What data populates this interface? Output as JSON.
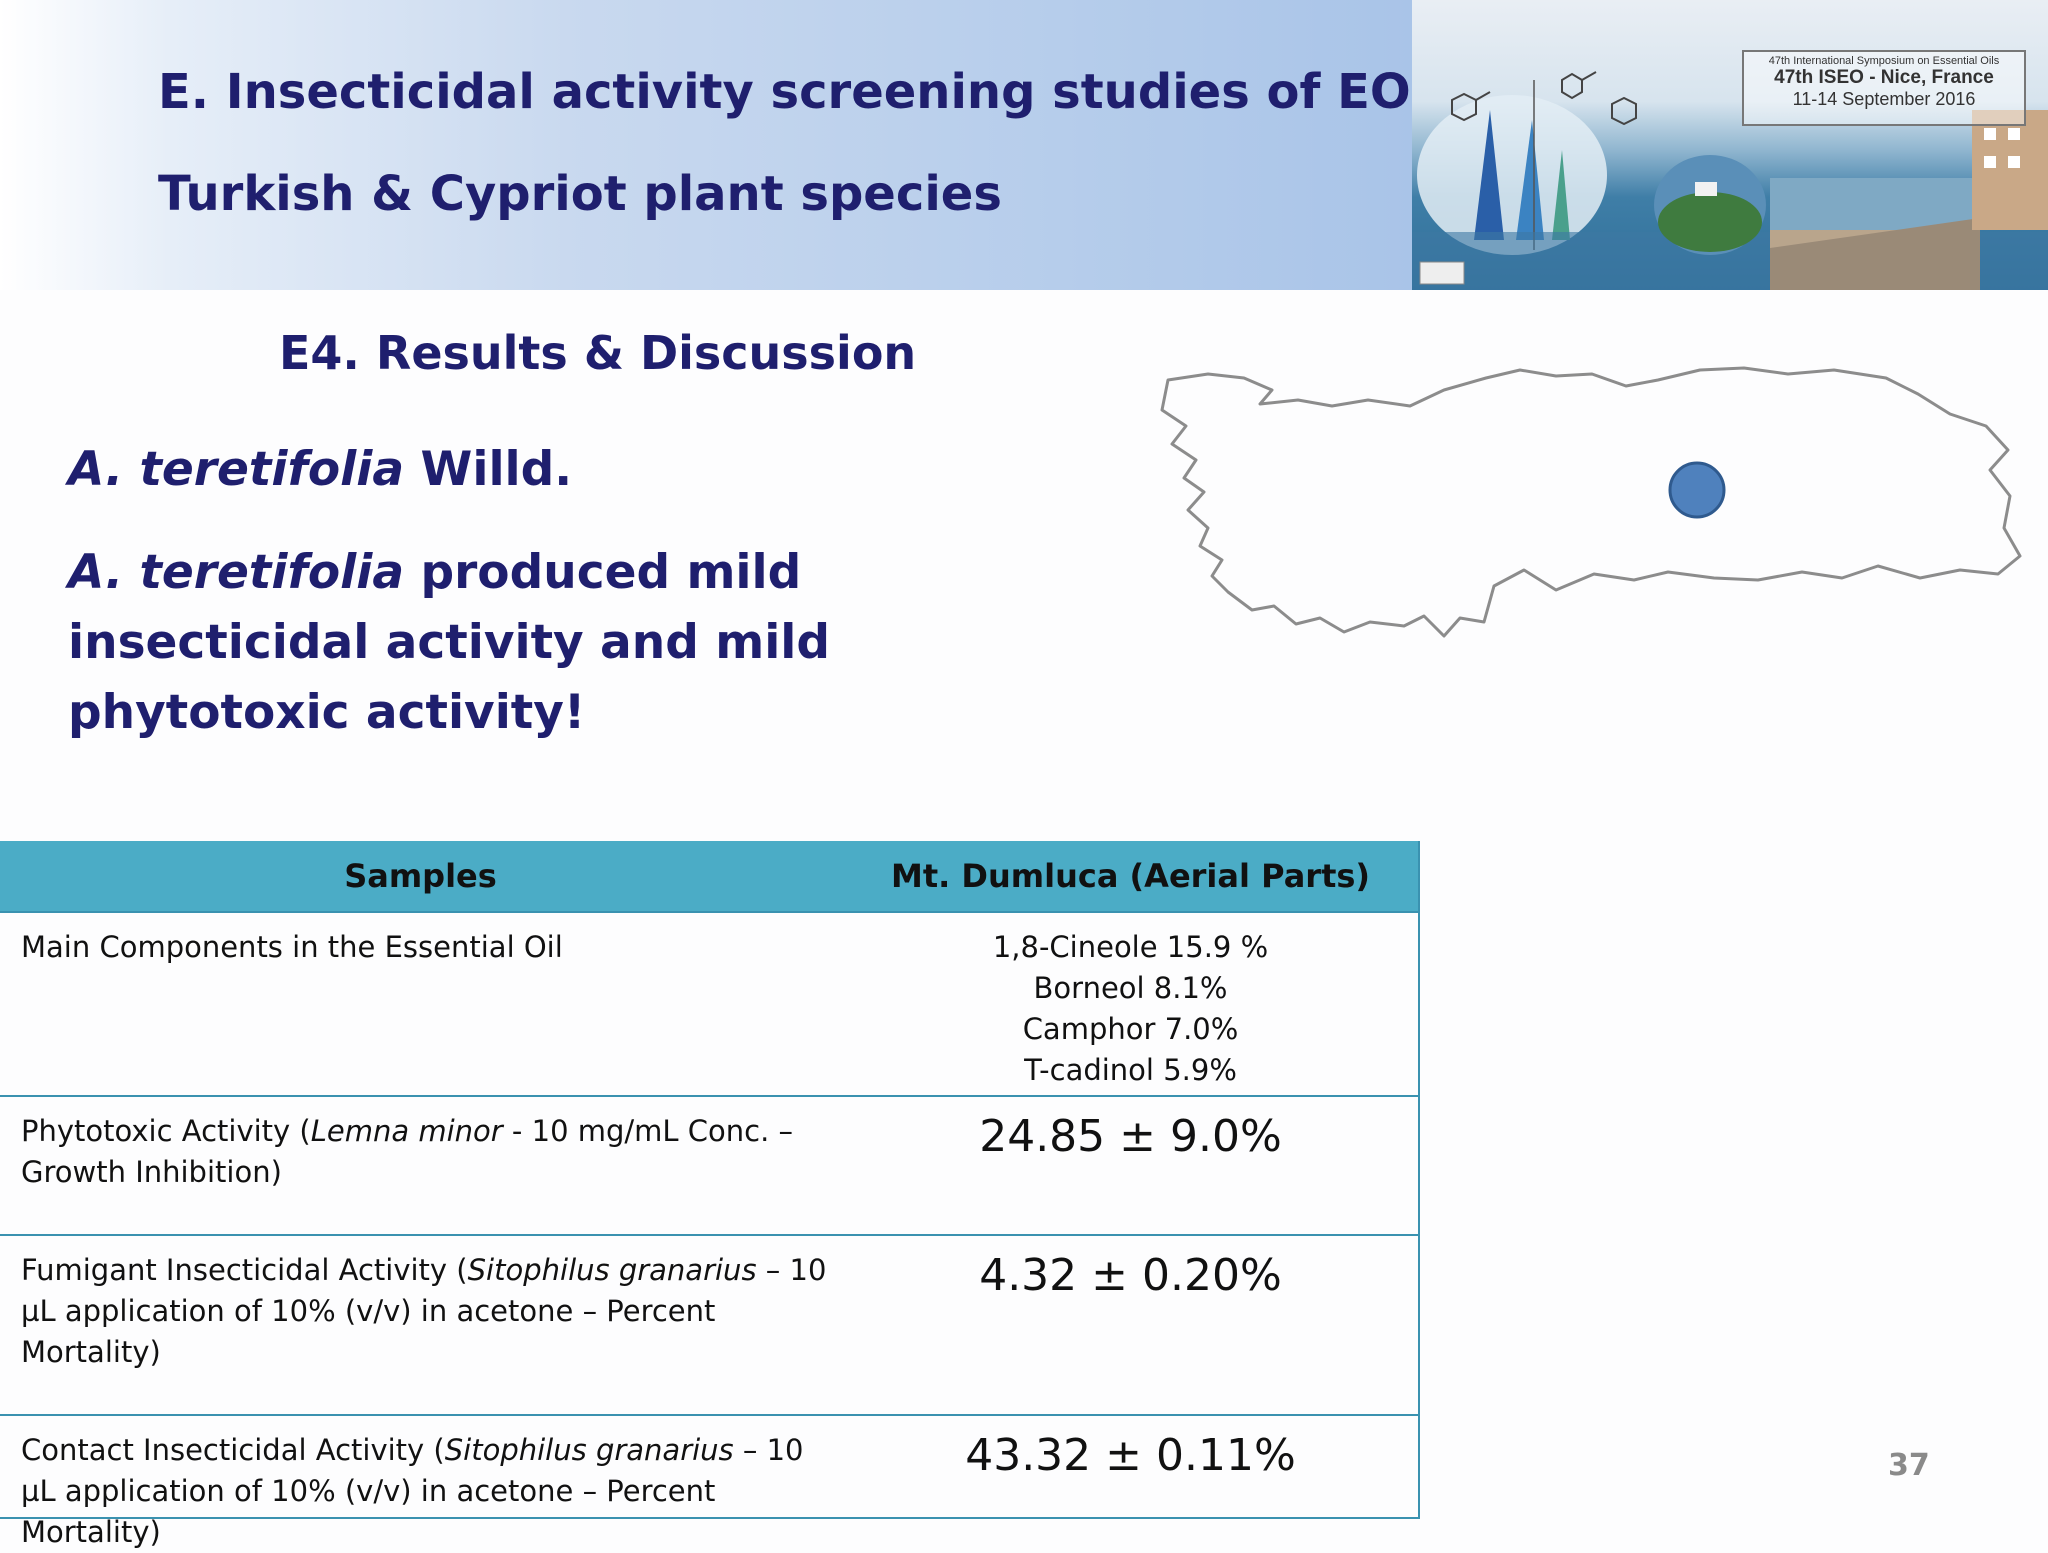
{
  "header": {
    "title_line1": "E. Insecticidal activity screening studies of EO from",
    "title_line2": "Turkish & Cypriot plant species"
  },
  "banner": {
    "sign_line1": "47th International Symposium on Essential Oils",
    "sign_line2": "47th ISEO - Nice, France",
    "sign_line3": "11-14 September 2016"
  },
  "section": {
    "subheading": "E4. Results & Discussion",
    "species_italic": "A. teretifolia",
    "species_author": " Willd.",
    "statement_italic": "A. teretifolia",
    "statement_rest": " produced mild insecticidal activity and mild phytotoxic activity!"
  },
  "map": {
    "outline_color": "#8c8c8c",
    "marker_color": "#4f81bd"
  },
  "table": {
    "headers": [
      "Samples",
      "Mt. Dumluca (Aerial Parts)"
    ],
    "header_color": "#4bacc6",
    "row1": {
      "label": "Main Components in the Essential Oil",
      "components": [
        "1,8-Cineole 15.9 %",
        "Borneol 8.1%",
        "Camphor 7.0%",
        "T-cadinol 5.9%"
      ]
    },
    "row2": {
      "label_pre": "Phytotoxic Activity (",
      "label_italic": "Lemna minor",
      "label_post": " - 10 mg/mL Conc. – Growth Inhibition)",
      "value": "24.85 ± 9.0%"
    },
    "row3": {
      "label_pre": "Fumigant Insecticidal Activity (",
      "label_italic": "Sitophilus granarius",
      "label_post": " – 10 µL application of 10% (v/v) in acetone – Percent Mortality)",
      "value": "4.32 ± 0.20%"
    },
    "row4": {
      "label_pre": "Contact Insecticidal Activity (",
      "label_italic": "Sitophilus granarius",
      "label_post": " – 10 µL application of 10% (v/v) in acetone – Percent Mortality)",
      "value": "43.32 ± 0.11%"
    }
  },
  "page_number": "37"
}
